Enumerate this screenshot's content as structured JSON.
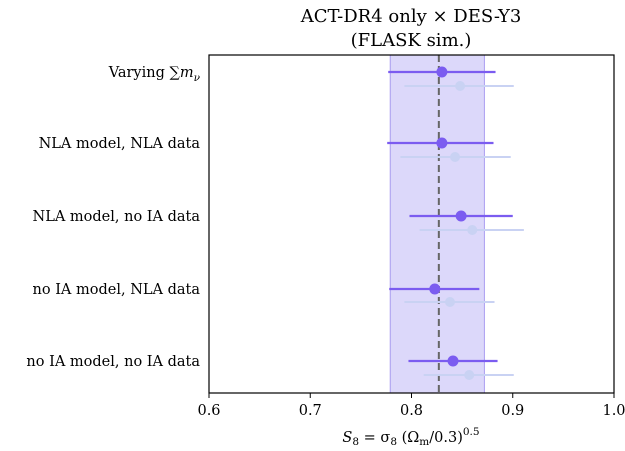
{
  "chart_data": {
    "type": "scatter",
    "title_line1": "ACT-DR4 only × DES-Y3",
    "title_line2": "(FLASK sim.)",
    "xlabel": "S₈ = σ₈ (Ωₘ/0.3)^0.5",
    "xlabel_parts": {
      "lhs": "S",
      "lhs_sub": "8",
      "eq": " = σ",
      "sigma_sub": "8",
      "paren_open": " (Ω",
      "omega_sub": "m",
      "rest": "/0.3)",
      "power": "0.5"
    },
    "xlim": [
      0.6,
      1.0
    ],
    "xticks": [
      "0.6",
      "0.7",
      "0.8",
      "0.9",
      "1.0"
    ],
    "xtick_values": [
      0.6,
      0.7,
      0.8,
      0.9,
      1.0
    ],
    "reference_line": 0.827,
    "reference_band": [
      0.779,
      0.872
    ],
    "colors": {
      "primary": "#7b5cf0",
      "secondary": "#c9d2f3",
      "band": "#dcd8fa",
      "band_edge": "#a99cf0",
      "reference_line": "#666666"
    },
    "categories": [
      "Varying ∑m_ν",
      "NLA model, NLA data",
      "NLA model, no IA data",
      "no IA model, NLA data",
      "no IA model, no IA data"
    ],
    "series": [
      {
        "values": [
          0.83,
          0.83,
          0.849,
          0.823,
          0.841
        ],
        "lower": [
          0.777,
          0.776,
          0.798,
          0.778,
          0.797
        ],
        "upper": [
          0.883,
          0.881,
          0.9,
          0.867,
          0.885
        ]
      },
      {
        "values": [
          0.848,
          0.843,
          0.86,
          0.838,
          0.857
        ],
        "lower": [
          0.793,
          0.789,
          0.808,
          0.793,
          0.812
        ],
        "upper": [
          0.901,
          0.898,
          0.911,
          0.882,
          0.901
        ]
      }
    ]
  }
}
